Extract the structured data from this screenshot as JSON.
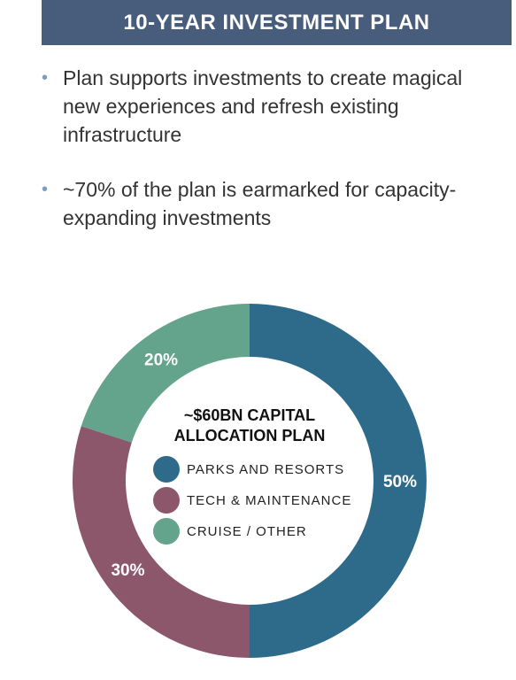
{
  "header": {
    "title": "10-YEAR INVESTMENT PLAN",
    "background": "#485d7c"
  },
  "bullets": [
    {
      "lines": [
        "Plan supports investments to create magical",
        "new experiences and refresh existing",
        "infrastructure"
      ]
    },
    {
      "lines": [
        "~70% of the plan is earmarked for capacity-",
        "expanding investments"
      ]
    }
  ],
  "chart_data": {
    "type": "pie",
    "donut": true,
    "title_lines": [
      "~$60BN CAPITAL",
      "ALLOCATION PLAN"
    ],
    "legend_placement": "center",
    "slices": [
      {
        "name": "PARKS AND RESORTS",
        "value": 50,
        "label": "50%",
        "color": "#2e6b8a"
      },
      {
        "name": "TECH & MAINTENANCE",
        "value": 30,
        "label": "30%",
        "color": "#8c566b"
      },
      {
        "name": "CRUISE / OTHER",
        "value": 20,
        "label": "20%",
        "color": "#64a38c"
      }
    ]
  }
}
